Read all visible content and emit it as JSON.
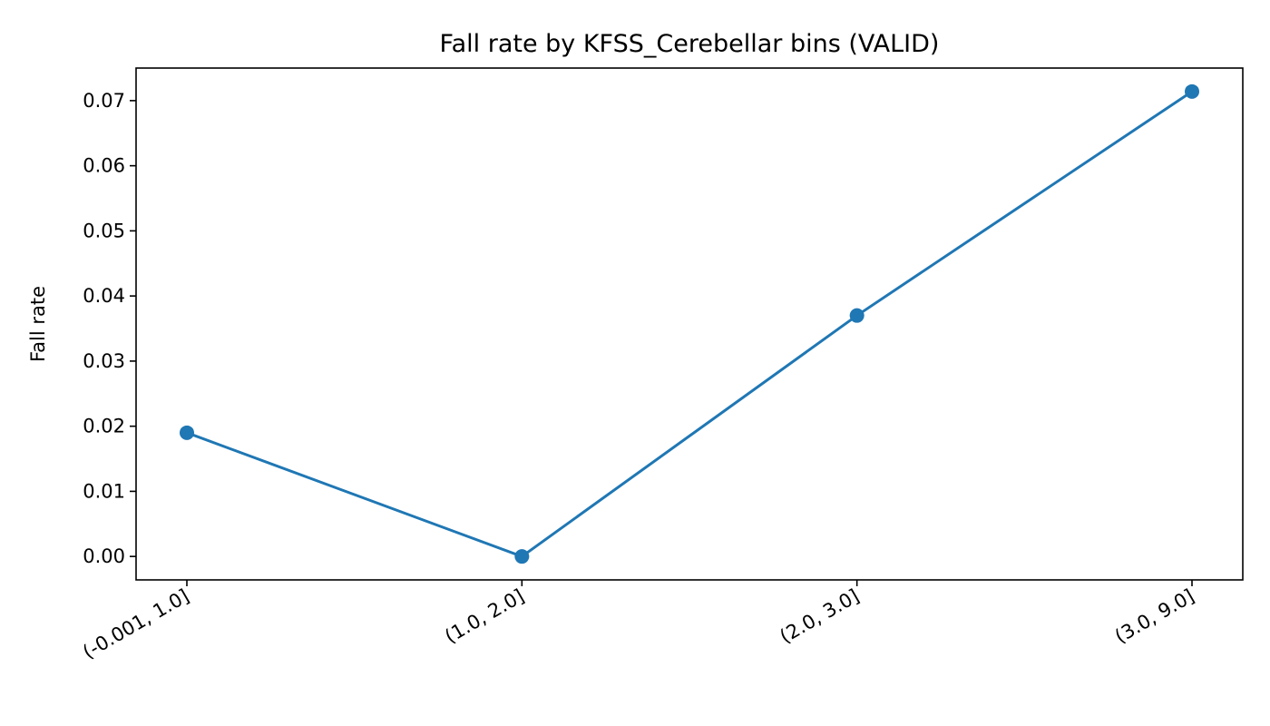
{
  "chart_data": {
    "type": "line",
    "title": "Fall rate by KFSS_Cerebellar bins (VALID)",
    "xlabel": "",
    "ylabel": "Fall rate",
    "categories": [
      "(-0.001, 1.0]",
      "(1.0, 2.0]",
      "(2.0, 3.0]",
      "(3.0, 9.0]"
    ],
    "series": [
      {
        "values": [
          0.019,
          0.0,
          0.037,
          0.0714
        ]
      }
    ],
    "yticks": [
      0.0,
      0.01,
      0.02,
      0.03,
      0.04,
      0.05,
      0.06,
      0.07
    ],
    "ytick_labels": [
      "0.00",
      "0.01",
      "0.02",
      "0.03",
      "0.04",
      "0.05",
      "0.06",
      "0.07"
    ],
    "ylim": [
      -0.0036,
      0.075
    ],
    "grid": false,
    "legend": "none",
    "line_color": "#1f77b4"
  }
}
